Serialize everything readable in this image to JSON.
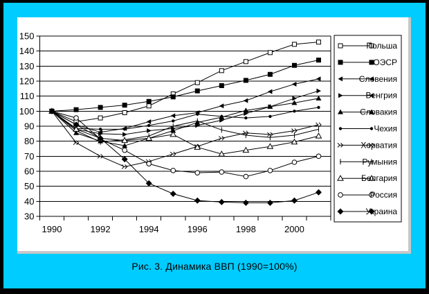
{
  "window": {
    "frame_color": "#000000",
    "panel_color": "#00CCFF",
    "chart_background": "#FFFFFF",
    "shadow_color": "#C8C8C8",
    "line_color": "#000000"
  },
  "caption": "Рис. 3. Динамика ВВП  (1990=100%)",
  "chart_data": {
    "type": "line",
    "title": "Рис. 3. Динамика ВВП (1990=100%)",
    "x": [
      1990,
      1991,
      1992,
      1993,
      1994,
      1995,
      1996,
      1997,
      1998,
      1999,
      2000,
      2001
    ],
    "x_axis_labels": [
      "1990",
      "1992",
      "1994",
      "1996",
      "1998",
      "2000"
    ],
    "ylim": [
      30,
      150
    ],
    "ytick_step": 10,
    "grid": "horizontal",
    "legend_position": "right",
    "series": [
      {
        "key": "poland",
        "name": "Польша",
        "marker": "square-open",
        "values": [
          100,
          93,
          95.5,
          99,
          103.5,
          111.5,
          119,
          127,
          133,
          139,
          144.5,
          146
        ]
      },
      {
        "key": "oecd",
        "name": "ОЭСР",
        "marker": "square-filled",
        "values": [
          100,
          101,
          102.5,
          104,
          106.5,
          109.5,
          113.5,
          117,
          120.5,
          124.5,
          130.5,
          134
        ]
      },
      {
        "key": "slovenia",
        "name": "Словения",
        "marker": "tri-left",
        "values": [
          100,
          91,
          86,
          88.5,
          93,
          97,
          99,
          103.5,
          107,
          113,
          118,
          121.5
        ]
      },
      {
        "key": "hungary",
        "name": "Венгрия",
        "marker": [
          "tri-right",
          "tri-left"
        ],
        "values": [
          100,
          88,
          85,
          84.5,
          87,
          88.5,
          90.5,
          94,
          98.5,
          103,
          108.5,
          113.5
        ]
      },
      {
        "key": "slovakia",
        "name": "Словакия",
        "marker": "tri-up",
        "values": [
          100,
          85.5,
          80,
          77,
          82,
          87,
          92.5,
          96,
          100.5,
          103,
          105.5,
          108.5
        ]
      },
      {
        "key": "czechia",
        "name": "Чехия",
        "marker": "dot",
        "values": [
          100,
          88.5,
          88,
          88,
          90.5,
          93.5,
          98,
          96.5,
          95.5,
          96.5,
          100,
          102.5
        ]
      },
      {
        "key": "croatia",
        "name": "Хорватия",
        "marker": "chevrons",
        "values": [
          100,
          79,
          70,
          63,
          66.5,
          71.5,
          76.5,
          82,
          85.5,
          84.5,
          87,
          91
        ]
      },
      {
        "key": "romania",
        "name": "Румыния",
        "marker": "vbar",
        "values": [
          100,
          87,
          79.5,
          81,
          83.5,
          90,
          93.5,
          87.5,
          84,
          82.5,
          84,
          88
        ]
      },
      {
        "key": "bulgaria",
        "name": "Болгария",
        "marker": "tri-up-open",
        "values": [
          100,
          88,
          82,
          80.5,
          82,
          84.5,
          76,
          71.5,
          74,
          76.5,
          79.5,
          83.5
        ]
      },
      {
        "key": "russia",
        "name": "Россия",
        "marker": "circle-open",
        "values": [
          100,
          95.5,
          81.5,
          74,
          65,
          60.5,
          59,
          59.5,
          56.5,
          60.5,
          66,
          70
        ]
      },
      {
        "key": "ukraine",
        "name": "Украина",
        "marker": "diamond",
        "values": [
          100,
          91,
          82,
          68,
          52,
          45,
          40.5,
          39.5,
          39,
          39,
          40.5,
          46
        ]
      }
    ]
  }
}
